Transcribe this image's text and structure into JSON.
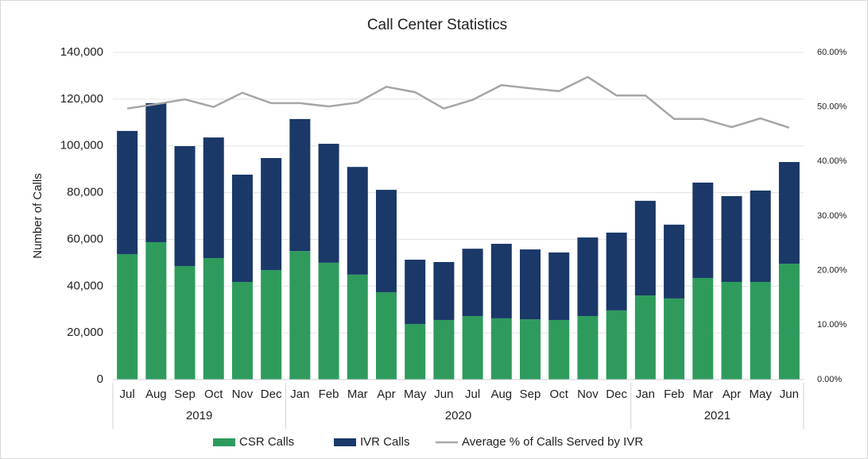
{
  "chart_data": {
    "type": "bar",
    "stacked": true,
    "title": "Call Center Statistics",
    "y_label": "Number of Calls",
    "categories": [
      "Jul",
      "Aug",
      "Sep",
      "Oct",
      "Nov",
      "Dec",
      "Jan",
      "Feb",
      "Mar",
      "Apr",
      "May",
      "Jun",
      "Jul",
      "Aug",
      "Sep",
      "Oct",
      "Nov",
      "Dec",
      "Jan",
      "Feb",
      "Mar",
      "Apr",
      "May",
      "Jun"
    ],
    "groups": [
      {
        "name": "2019",
        "count": 6
      },
      {
        "name": "2020",
        "count": 12
      },
      {
        "name": "2021",
        "count": 6
      }
    ],
    "series": [
      {
        "name": "CSR Calls",
        "type": "bar",
        "color": "#2e9b5d",
        "values": [
          53700,
          58800,
          48600,
          52000,
          41800,
          46900,
          55000,
          50000,
          44900,
          37400,
          23800,
          25500,
          27200,
          26200,
          25800,
          25500,
          27200,
          29600,
          36000,
          34700,
          43500,
          41800,
          41800,
          49600
        ]
      },
      {
        "name": "IVR Calls",
        "type": "bar",
        "color": "#1a3868",
        "values": [
          52700,
          59500,
          51300,
          51600,
          45900,
          47900,
          56500,
          50900,
          46100,
          43800,
          27500,
          24800,
          28800,
          31900,
          29900,
          28900,
          33600,
          33300,
          40500,
          31600,
          40800,
          36700,
          39100,
          43500
        ]
      },
      {
        "name": "Average % of Calls Served by IVR",
        "type": "line",
        "axis": "y2",
        "color": "#a6a6a6",
        "values": [
          49.7,
          50.5,
          51.4,
          50.0,
          52.6,
          50.7,
          50.7,
          50.1,
          50.8,
          53.7,
          52.7,
          49.7,
          51.3,
          54.0,
          53.4,
          52.9,
          55.5,
          52.1,
          52.1,
          47.8,
          47.8,
          46.3,
          47.9,
          46.2
        ]
      }
    ],
    "ylim": [
      0,
      140000
    ],
    "yticks": [
      0,
      {
        "value": 20000,
        "label": "20,000"
      },
      {
        "value": 40000,
        "label": "40,000"
      },
      {
        "value": 60000,
        "label": "60,000"
      },
      {
        "value": 80000,
        "label": "80,000"
      },
      {
        "value": 100000,
        "label": "100,000"
      },
      {
        "value": 120000,
        "label": "120,000"
      },
      {
        "value": 140000,
        "label": "140,000"
      }
    ],
    "y2lim": [
      0,
      60
    ],
    "y2ticks": [
      {
        "value": 0,
        "label": "0.00%"
      },
      {
        "value": 10,
        "label": "10.00%"
      },
      {
        "value": 20,
        "label": "20.00%"
      },
      {
        "value": 30,
        "label": "30.00%"
      },
      {
        "value": 40,
        "label": "40.00%"
      },
      {
        "value": 50,
        "label": "50.00%"
      },
      {
        "value": 60,
        "label": "60.00%"
      }
    ],
    "grid": true,
    "legend": "bottom"
  }
}
